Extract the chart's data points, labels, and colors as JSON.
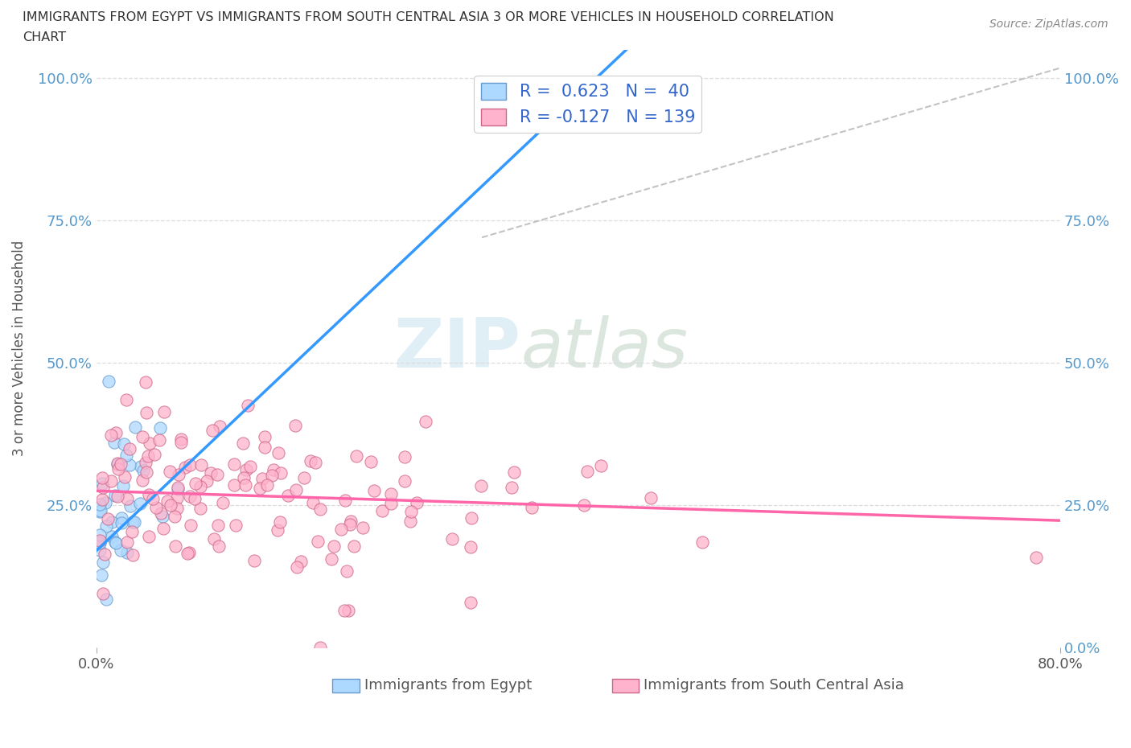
{
  "title_line1": "IMMIGRANTS FROM EGYPT VS IMMIGRANTS FROM SOUTH CENTRAL ASIA 3 OR MORE VEHICLES IN HOUSEHOLD CORRELATION",
  "title_line2": "CHART",
  "source_text": "Source: ZipAtlas.com",
  "ylabel": "3 or more Vehicles in Household",
  "xmin": 0.0,
  "xmax": 0.8,
  "ymin": 0.0,
  "ymax": 1.05,
  "egypt_color": "#add8ff",
  "egypt_edge_color": "#6699cc",
  "south_asia_color": "#ffb3cc",
  "south_asia_edge_color": "#cc6688",
  "egypt_R": 0.623,
  "egypt_N": 40,
  "south_asia_R": -0.127,
  "south_asia_N": 139,
  "legend_label_egypt": "Immigrants from Egypt",
  "legend_label_south_asia": "Immigrants from South Central Asia",
  "watermark_zip": "ZIP",
  "watermark_atlas": "atlas",
  "eg_line_slope": 2.0,
  "eg_line_intercept": 0.17,
  "sa_line_slope": -0.065,
  "sa_line_intercept": 0.275
}
